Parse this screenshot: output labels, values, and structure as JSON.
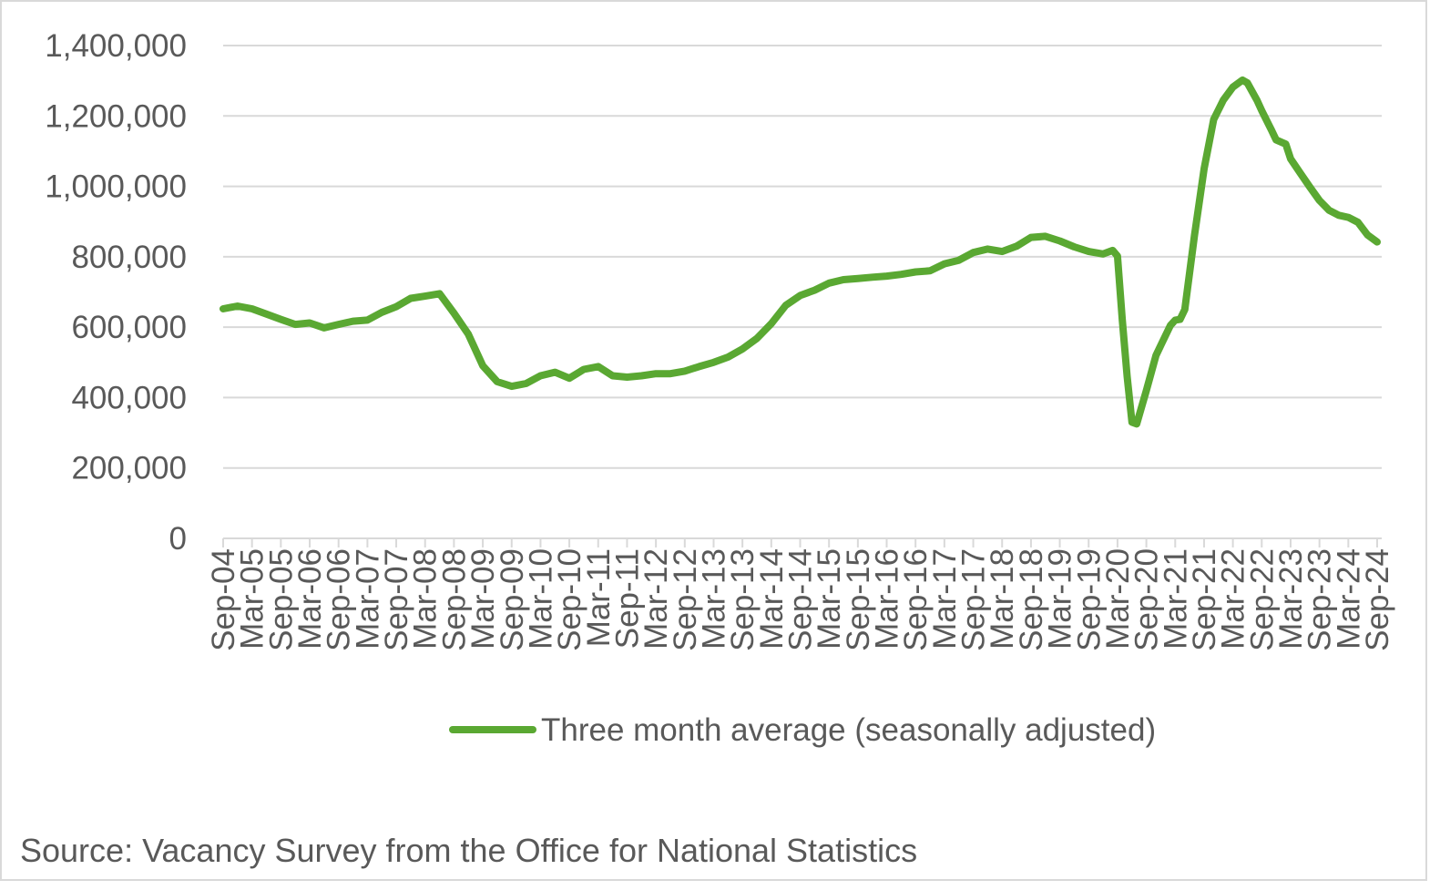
{
  "chart_data": {
    "type": "line",
    "title": "",
    "xlabel": "",
    "ylabel": "",
    "ylim": [
      0,
      1400000
    ],
    "y_ticks": [
      "0",
      "200,000",
      "400,000",
      "600,000",
      "800,000",
      "1,000,000",
      "1,200,000",
      "1,400,000"
    ],
    "y_tick_values": [
      0,
      200000,
      400000,
      600000,
      800000,
      1000000,
      1200000,
      1400000
    ],
    "x_ticks": [
      "Sep-04",
      "Mar-05",
      "Sep-05",
      "Mar-06",
      "Sep-06",
      "Mar-07",
      "Sep-07",
      "Mar-08",
      "Sep-08",
      "Mar-09",
      "Sep-09",
      "Mar-10",
      "Sep-10",
      "Mar-11",
      "Sep-11",
      "Mar-12",
      "Sep-12",
      "Mar-13",
      "Sep-13",
      "Mar-14",
      "Sep-14",
      "Mar-15",
      "Sep-15",
      "Mar-16",
      "Sep-16",
      "Mar-17",
      "Sep-17",
      "Mar-18",
      "Sep-18",
      "Mar-19",
      "Sep-19",
      "Mar-20",
      "Sep-20",
      "Mar-21",
      "Sep-21",
      "Mar-22",
      "Sep-22",
      "Mar-23",
      "Sep-23",
      "Mar-24",
      "Sep-24"
    ],
    "grid": true,
    "legend": "bottom",
    "series": [
      {
        "name": "Three month average (seasonally adjusted)",
        "color": "#5aa832",
        "points": [
          [
            "Sep-04",
            652000
          ],
          [
            "Dec-04",
            660000
          ],
          [
            "Mar-05",
            652000
          ],
          [
            "Jun-05",
            637000
          ],
          [
            "Sep-05",
            622000
          ],
          [
            "Dec-05",
            608000
          ],
          [
            "Mar-06",
            612000
          ],
          [
            "Jun-06",
            598000
          ],
          [
            "Sep-06",
            608000
          ],
          [
            "Dec-06",
            617000
          ],
          [
            "Mar-07",
            620000
          ],
          [
            "Jun-07",
            642000
          ],
          [
            "Sep-07",
            658000
          ],
          [
            "Dec-07",
            682000
          ],
          [
            "Mar-08",
            688000
          ],
          [
            "Jun-08",
            695000
          ],
          [
            "Sep-08",
            640000
          ],
          [
            "Dec-08",
            580000
          ],
          [
            "Mar-09",
            490000
          ],
          [
            "Jun-09",
            445000
          ],
          [
            "Sep-09",
            432000
          ],
          [
            "Dec-09",
            440000
          ],
          [
            "Mar-10",
            462000
          ],
          [
            "Jun-10",
            472000
          ],
          [
            "Sep-10",
            455000
          ],
          [
            "Dec-10",
            480000
          ],
          [
            "Mar-11",
            488000
          ],
          [
            "Jun-11",
            462000
          ],
          [
            "Sep-11",
            458000
          ],
          [
            "Dec-11",
            462000
          ],
          [
            "Mar-12",
            468000
          ],
          [
            "Jun-12",
            468000
          ],
          [
            "Sep-12",
            475000
          ],
          [
            "Dec-12",
            488000
          ],
          [
            "Mar-13",
            500000
          ],
          [
            "Jun-13",
            515000
          ],
          [
            "Sep-13",
            538000
          ],
          [
            "Dec-13",
            568000
          ],
          [
            "Mar-14",
            610000
          ],
          [
            "Jun-14",
            662000
          ],
          [
            "Sep-14",
            690000
          ],
          [
            "Dec-14",
            705000
          ],
          [
            "Mar-15",
            725000
          ],
          [
            "Jun-15",
            735000
          ],
          [
            "Sep-15",
            738000
          ],
          [
            "Dec-15",
            742000
          ],
          [
            "Mar-16",
            745000
          ],
          [
            "Jun-16",
            750000
          ],
          [
            "Sep-16",
            757000
          ],
          [
            "Dec-16",
            760000
          ],
          [
            "Mar-17",
            780000
          ],
          [
            "Jun-17",
            790000
          ],
          [
            "Sep-17",
            812000
          ],
          [
            "Dec-17",
            822000
          ],
          [
            "Mar-18",
            815000
          ],
          [
            "Jun-18",
            830000
          ],
          [
            "Sep-18",
            855000
          ],
          [
            "Dec-18",
            858000
          ],
          [
            "Mar-19",
            845000
          ],
          [
            "Jun-19",
            828000
          ],
          [
            "Sep-19",
            815000
          ],
          [
            "Dec-19",
            808000
          ],
          [
            "Feb-20",
            818000
          ],
          [
            "Mar-20",
            802000
          ],
          [
            "Apr-20",
            620000
          ],
          [
            "May-20",
            460000
          ],
          [
            "Jun-20",
            330000
          ],
          [
            "Jul-20",
            325000
          ],
          [
            "Sep-20",
            420000
          ],
          [
            "Nov-20",
            520000
          ],
          [
            "Dec-20",
            548000
          ],
          [
            "Feb-21",
            605000
          ],
          [
            "Mar-21",
            620000
          ],
          [
            "Apr-21",
            622000
          ],
          [
            "May-21",
            650000
          ],
          [
            "Jul-21",
            860000
          ],
          [
            "Sep-21",
            1050000
          ],
          [
            "Nov-21",
            1190000
          ],
          [
            "Jan-22",
            1245000
          ],
          [
            "Mar-22",
            1282000
          ],
          [
            "May-22",
            1302000
          ],
          [
            "Jun-22",
            1294000
          ],
          [
            "Aug-22",
            1245000
          ],
          [
            "Sep-22",
            1215000
          ],
          [
            "Nov-22",
            1160000
          ],
          [
            "Dec-22",
            1132000
          ],
          [
            "Feb-23",
            1120000
          ],
          [
            "Mar-23",
            1078000
          ],
          [
            "May-23",
            1038000
          ],
          [
            "Jul-23",
            998000
          ],
          [
            "Sep-23",
            960000
          ],
          [
            "Nov-23",
            932000
          ],
          [
            "Jan-24",
            918000
          ],
          [
            "Mar-24",
            912000
          ],
          [
            "May-24",
            898000
          ],
          [
            "Jul-24",
            862000
          ],
          [
            "Sep-24",
            842000
          ]
        ]
      }
    ]
  },
  "source_text": "Source: Vacancy Survey from the Office for National Statistics"
}
